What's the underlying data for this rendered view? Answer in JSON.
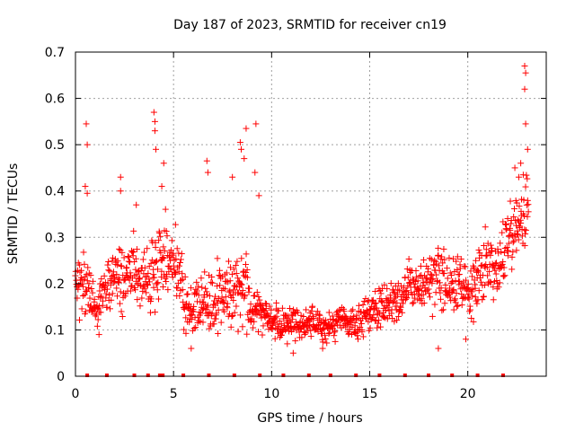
{
  "chart_data": {
    "type": "scatter",
    "title": "Day 187 of 2023, SRMTID for receiver cn19",
    "xlabel": "GPS time / hours",
    "ylabel": "SRMTID / TECUs",
    "xlim": [
      0,
      24
    ],
    "ylim": [
      0,
      0.7
    ],
    "x_ticks": [
      0,
      5,
      10,
      15,
      20
    ],
    "x_tick_labels": [
      "0",
      "5",
      "10",
      "15",
      "20"
    ],
    "y_ticks": [
      0,
      0.1,
      0.2,
      0.3,
      0.4,
      0.5,
      0.6,
      0.7
    ],
    "y_tick_labels": [
      "0",
      "0.1",
      "0.2",
      "0.3",
      "0.4",
      "0.5",
      "0.6",
      "0.7"
    ],
    "grid": true,
    "marker": "plus",
    "series_color": "#ff0000",
    "baseline_marks_x": [
      0.6,
      1.6,
      3.0,
      3.7,
      4.3,
      4.45,
      5.5,
      6.8,
      8.1,
      9.4,
      10.6,
      11.9,
      13.0,
      14.3,
      15.5,
      16.8,
      18.0,
      19.2,
      20.5,
      21.8
    ],
    "series_profile": {
      "x": [
        0,
        0.25,
        0.5,
        0.75,
        1,
        1.5,
        2,
        2.5,
        3,
        3.5,
        4,
        4.5,
        5,
        5.5,
        6,
        6.5,
        7,
        7.5,
        8,
        8.5,
        9,
        9.5,
        10,
        10.5,
        11,
        11.5,
        12,
        12.5,
        13,
        13.5,
        14,
        14.5,
        15,
        15.5,
        16,
        16.5,
        17,
        17.5,
        18,
        18.5,
        19,
        19.5,
        20,
        20.5,
        21,
        21.5,
        22,
        22.5,
        23
      ],
      "center": [
        0.22,
        0.2,
        0.24,
        0.18,
        0.15,
        0.19,
        0.22,
        0.2,
        0.24,
        0.2,
        0.23,
        0.25,
        0.27,
        0.17,
        0.14,
        0.17,
        0.15,
        0.18,
        0.17,
        0.2,
        0.16,
        0.14,
        0.13,
        0.11,
        0.12,
        0.11,
        0.12,
        0.1,
        0.11,
        0.12,
        0.11,
        0.12,
        0.14,
        0.15,
        0.16,
        0.17,
        0.2,
        0.19,
        0.2,
        0.22,
        0.19,
        0.2,
        0.17,
        0.2,
        0.25,
        0.22,
        0.3,
        0.33,
        0.37
      ],
      "spread": [
        0.05,
        0.06,
        0.09,
        0.06,
        0.05,
        0.05,
        0.06,
        0.06,
        0.07,
        0.06,
        0.09,
        0.07,
        0.07,
        0.06,
        0.05,
        0.05,
        0.06,
        0.06,
        0.06,
        0.08,
        0.06,
        0.04,
        0.03,
        0.03,
        0.03,
        0.03,
        0.03,
        0.03,
        0.03,
        0.03,
        0.03,
        0.03,
        0.04,
        0.04,
        0.04,
        0.05,
        0.05,
        0.05,
        0.06,
        0.06,
        0.06,
        0.06,
        0.05,
        0.06,
        0.07,
        0.06,
        0.07,
        0.07,
        0.08
      ]
    },
    "spikes": [
      {
        "x": 0.55,
        "y": 0.545
      },
      {
        "x": 0.6,
        "y": 0.5
      },
      {
        "x": 0.5,
        "y": 0.41
      },
      {
        "x": 0.6,
        "y": 0.395
      },
      {
        "x": 2.3,
        "y": 0.43
      },
      {
        "x": 2.3,
        "y": 0.4
      },
      {
        "x": 3.1,
        "y": 0.37
      },
      {
        "x": 4.0,
        "y": 0.57
      },
      {
        "x": 4.05,
        "y": 0.55
      },
      {
        "x": 4.05,
        "y": 0.53
      },
      {
        "x": 4.1,
        "y": 0.49
      },
      {
        "x": 4.5,
        "y": 0.46
      },
      {
        "x": 4.4,
        "y": 0.41
      },
      {
        "x": 6.7,
        "y": 0.465
      },
      {
        "x": 6.75,
        "y": 0.44
      },
      {
        "x": 8.0,
        "y": 0.43
      },
      {
        "x": 8.4,
        "y": 0.505
      },
      {
        "x": 8.45,
        "y": 0.49
      },
      {
        "x": 8.7,
        "y": 0.535
      },
      {
        "x": 8.6,
        "y": 0.47
      },
      {
        "x": 9.2,
        "y": 0.545
      },
      {
        "x": 9.15,
        "y": 0.44
      },
      {
        "x": 9.35,
        "y": 0.39
      },
      {
        "x": 22.9,
        "y": 0.67
      },
      {
        "x": 22.95,
        "y": 0.655
      },
      {
        "x": 22.9,
        "y": 0.62
      },
      {
        "x": 22.95,
        "y": 0.545
      },
      {
        "x": 23.05,
        "y": 0.49
      },
      {
        "x": 22.7,
        "y": 0.46
      },
      {
        "x": 22.4,
        "y": 0.45
      },
      {
        "x": 22.6,
        "y": 0.43
      },
      {
        "x": 1.2,
        "y": 0.09
      },
      {
        "x": 5.9,
        "y": 0.06
      },
      {
        "x": 10.8,
        "y": 0.07
      },
      {
        "x": 11.1,
        "y": 0.05
      },
      {
        "x": 12.6,
        "y": 0.06
      },
      {
        "x": 18.5,
        "y": 0.06
      },
      {
        "x": 19.9,
        "y": 0.08
      }
    ]
  }
}
